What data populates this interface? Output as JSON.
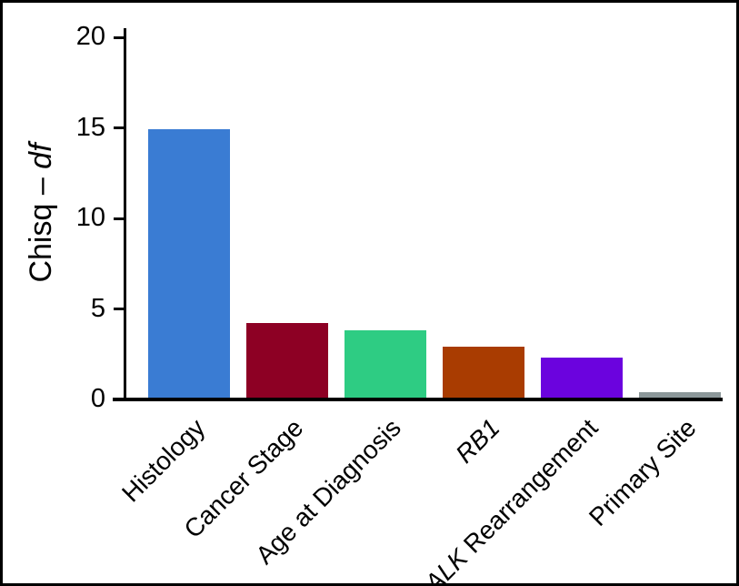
{
  "figure": {
    "background": "#ffffff",
    "frame_color": "#000000",
    "axis_color": "#000000",
    "text_color": "#000000"
  },
  "chart_data": {
    "type": "bar",
    "title": "",
    "xlabel": "",
    "ylabel": "Chisq – df",
    "ylabel_segments": [
      {
        "t": "Chisq – ",
        "i": false
      },
      {
        "t": "df",
        "i": true
      }
    ],
    "categories": [
      "Histology",
      "Cancer Stage",
      "Age at Diagnosis",
      "RB1",
      "ALK Rearrangement",
      "Primary Site"
    ],
    "category_segments": [
      [
        {
          "t": "Histology",
          "i": false
        }
      ],
      [
        {
          "t": "Cancer Stage",
          "i": false
        }
      ],
      [
        {
          "t": "Age at Diagnosis",
          "i": false
        }
      ],
      [
        {
          "t": "RB1",
          "i": true
        }
      ],
      [
        {
          "t": "ALK",
          "i": true
        },
        {
          "t": " Rearrangement",
          "i": false
        }
      ],
      [
        {
          "t": "Primary Site",
          "i": false
        }
      ]
    ],
    "values": [
      14.9,
      4.2,
      3.8,
      2.9,
      2.3,
      0.4
    ],
    "bar_colors": [
      "#3A7CD3",
      "#8D0024",
      "#2ECC83",
      "#A93C01",
      "#6B03DE",
      "#8C9799"
    ],
    "yticks": [
      0,
      5,
      10,
      15,
      20
    ],
    "ylim": [
      0,
      20
    ],
    "grid": false,
    "legend": null,
    "tick_label_rotation_deg": 45
  }
}
